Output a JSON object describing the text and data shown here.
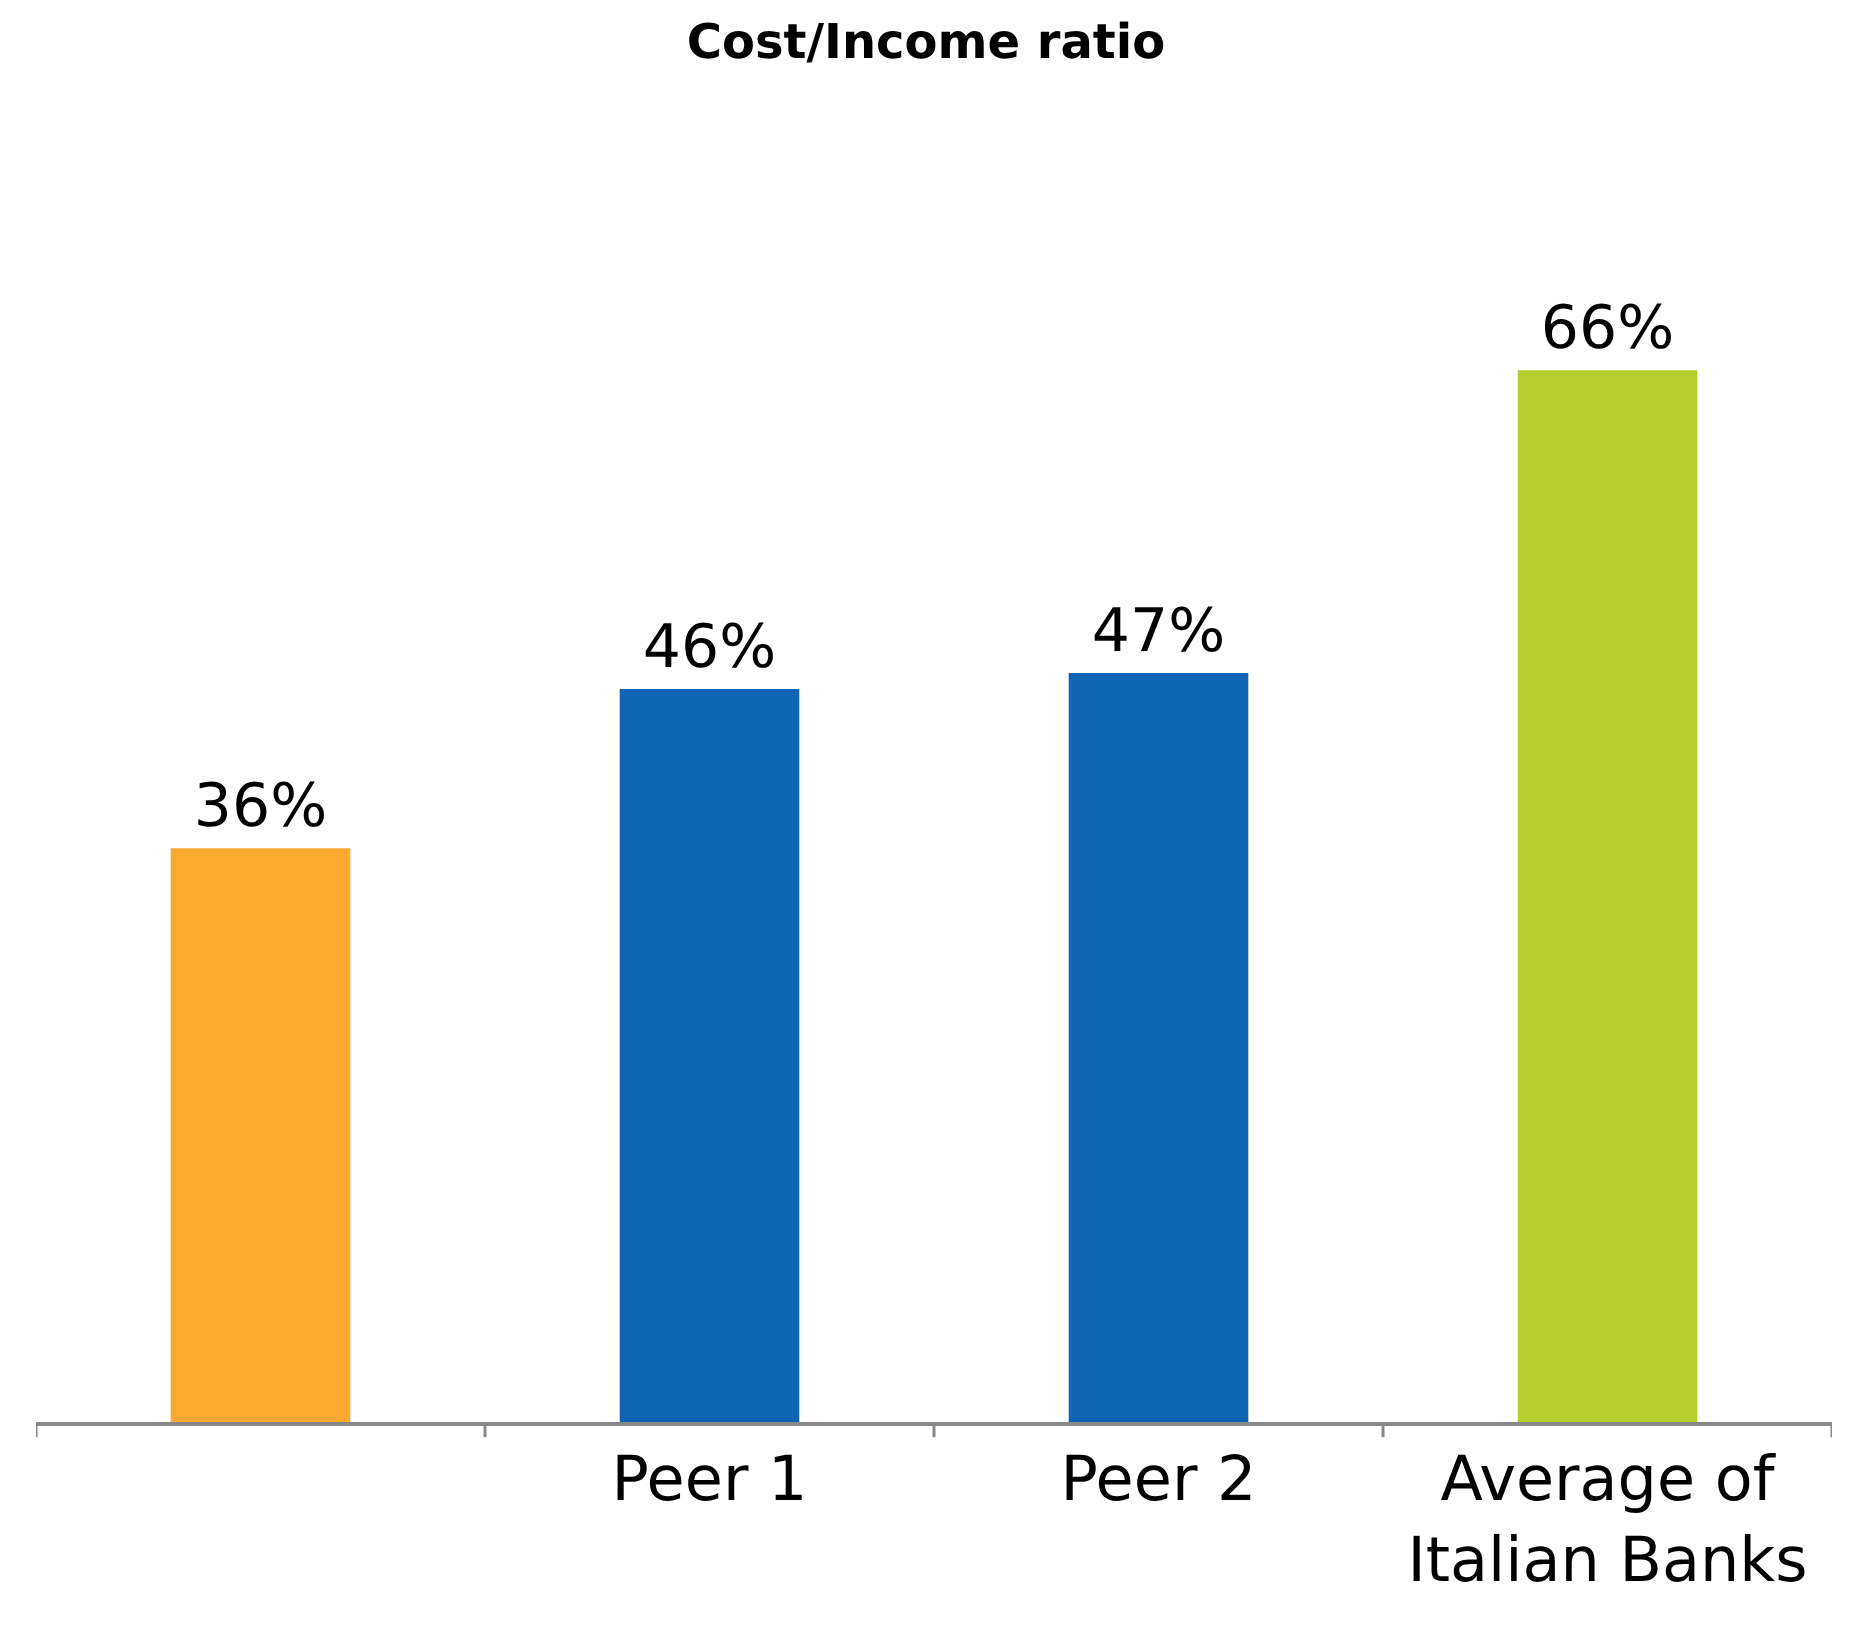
{
  "chart_data": {
    "type": "bar",
    "title": "Cost/Income ratio",
    "categories": [
      null,
      "Peer 1",
      "Peer 2",
      "Average of Italian Banks"
    ],
    "values": [
      36,
      46,
      47,
      66
    ],
    "colors": [
      "#fba931",
      "#1164b4",
      "#1164b4",
      "#b5ce2e"
    ],
    "value_labels": [
      "36%",
      "46%",
      "47%",
      "66%"
    ],
    "grid": false
  }
}
